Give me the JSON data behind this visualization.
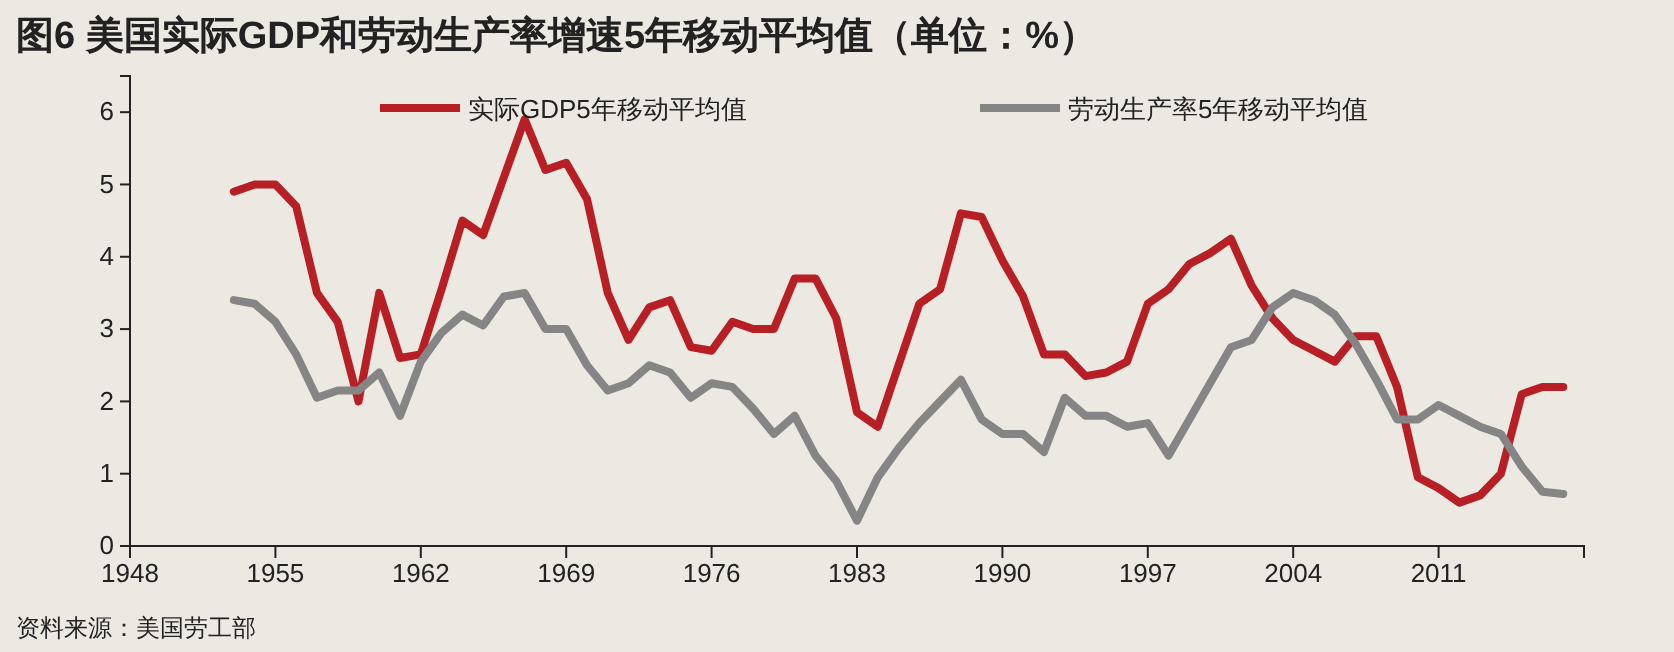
{
  "chart_data": {
    "type": "line",
    "title": "图6  美国实际GDP和劳动生产率增速5年移动平均值（单位：%）",
    "annotations": [
      "资料来源：美国劳工部"
    ],
    "x": [
      1953,
      1954,
      1955,
      1956,
      1957,
      1958,
      1959,
      1960,
      1961,
      1962,
      1963,
      1964,
      1965,
      1966,
      1967,
      1968,
      1969,
      1970,
      1971,
      1972,
      1973,
      1974,
      1975,
      1976,
      1977,
      1978,
      1979,
      1980,
      1981,
      1982,
      1983,
      1984,
      1985,
      1986,
      1987,
      1988,
      1989,
      1990,
      1991,
      1992,
      1993,
      1994,
      1995,
      1996,
      1997,
      1998,
      1999,
      2000,
      2001,
      2002,
      2003,
      2004,
      2005,
      2006,
      2007,
      2008,
      2009,
      2010,
      2011,
      2012,
      2013,
      2014,
      2015,
      2016,
      2017
    ],
    "series": [
      {
        "name": "实际GDP5年移动平均值",
        "color": "#b81f25",
        "values": [
          4.9,
          5.0,
          5.0,
          4.7,
          3.5,
          3.1,
          2.0,
          3.5,
          2.6,
          2.65,
          3.55,
          4.5,
          4.3,
          5.1,
          5.9,
          5.2,
          5.3,
          4.8,
          3.5,
          2.85,
          3.3,
          3.4,
          2.75,
          2.7,
          3.1,
          3.0,
          3.0,
          3.7,
          3.7,
          3.15,
          1.85,
          1.65,
          2.5,
          3.35,
          3.55,
          4.6,
          4.55,
          3.95,
          3.45,
          2.65,
          2.65,
          2.35,
          2.4,
          2.55,
          3.35,
          3.55,
          3.9,
          4.05,
          4.25,
          3.6,
          3.15,
          2.85,
          2.7,
          2.55,
          2.9,
          2.9,
          2.2,
          0.95,
          0.8,
          0.6,
          0.7,
          1.0,
          2.1,
          2.2,
          2.2
        ]
      },
      {
        "name": "劳动生产率5年移动平均值",
        "color": "#858585",
        "values": [
          3.4,
          3.35,
          3.1,
          2.65,
          2.05,
          2.15,
          2.15,
          2.4,
          1.8,
          2.55,
          2.95,
          3.2,
          3.05,
          3.45,
          3.5,
          3.0,
          3.0,
          2.5,
          2.15,
          2.25,
          2.5,
          2.4,
          2.05,
          2.25,
          2.2,
          1.9,
          1.55,
          1.8,
          1.25,
          0.9,
          0.35,
          0.95,
          1.35,
          1.7,
          2.0,
          2.3,
          1.75,
          1.55,
          1.55,
          1.3,
          2.05,
          1.8,
          1.8,
          1.65,
          1.7,
          1.25,
          1.75,
          2.25,
          2.75,
          2.85,
          3.3,
          3.5,
          3.4,
          3.2,
          2.8,
          2.3,
          1.75,
          1.75,
          1.95,
          1.8,
          1.65,
          1.55,
          1.1,
          0.75,
          0.72
        ]
      }
    ],
    "xlim": [
      1948,
      2018
    ],
    "xticks": [
      1948,
      1955,
      1962,
      1969,
      1976,
      1983,
      1990,
      1997,
      2004,
      2011
    ],
    "ylim": [
      0,
      6.5
    ],
    "yticks": [
      0,
      1,
      2,
      3,
      4,
      5,
      6
    ],
    "grid": false,
    "legend": "top",
    "marker": "none",
    "line_style": "solid"
  }
}
